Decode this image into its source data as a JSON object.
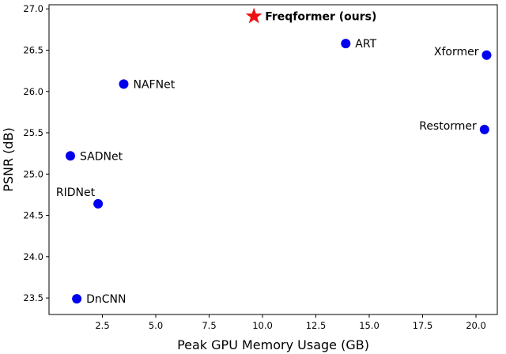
{
  "chart_data": {
    "type": "scatter",
    "title": "",
    "xlabel": "Peak GPU Memory Usage (GB)",
    "ylabel": "PSNR (dB)",
    "xlim": [
      0.0,
      21.0
    ],
    "ylim": [
      23.3,
      27.05
    ],
    "xticks": [
      2.5,
      5.0,
      7.5,
      10.0,
      12.5,
      15.0,
      17.5,
      20.0
    ],
    "xtick_labels": [
      "2.5",
      "5.0",
      "7.5",
      "10.0",
      "12.5",
      "15.0",
      "17.5",
      "20.0"
    ],
    "yticks": [
      23.5,
      24.0,
      24.5,
      25.0,
      25.5,
      26.0,
      26.5,
      27.0
    ],
    "ytick_labels": [
      "23.5",
      "24.0",
      "24.5",
      "25.0",
      "25.5",
      "26.0",
      "26.5",
      "27.0"
    ],
    "grid": false,
    "legend": "none",
    "colors": {
      "model": "#0000ee",
      "highlight": "#ee1111"
    },
    "points": [
      {
        "label": "Freqformer (ours)",
        "x": 9.6,
        "y": 26.91,
        "marker": "star",
        "highlight": true,
        "label_side": "right"
      },
      {
        "label": "ART",
        "x": 13.9,
        "y": 26.58,
        "marker": "circle",
        "label_side": "right"
      },
      {
        "label": "Xformer",
        "x": 20.5,
        "y": 26.44,
        "marker": "circle",
        "label_side": "left"
      },
      {
        "label": "NAFNet",
        "x": 3.5,
        "y": 26.09,
        "marker": "circle",
        "label_side": "right"
      },
      {
        "label": "Restormer",
        "x": 20.4,
        "y": 25.54,
        "marker": "circle",
        "label_side": "left"
      },
      {
        "label": "SADNet",
        "x": 1.0,
        "y": 25.22,
        "marker": "circle",
        "label_side": "right"
      },
      {
        "label": "RIDNet",
        "x": 2.3,
        "y": 24.64,
        "marker": "circle",
        "label_side": "above-left"
      },
      {
        "label": "DnCNN",
        "x": 1.3,
        "y": 23.49,
        "marker": "circle",
        "label_side": "right"
      }
    ]
  }
}
